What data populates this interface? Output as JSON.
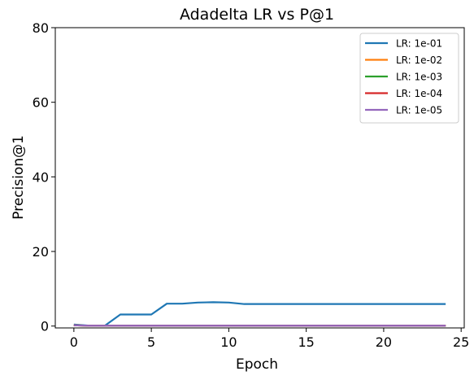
{
  "chart_data": {
    "type": "line",
    "title": "Adadelta LR vs P@1",
    "xlabel": "Epoch",
    "ylabel": "Precision@1",
    "xlim": [
      -1.2,
      25.2
    ],
    "ylim": [
      -0.5,
      80
    ],
    "xticks": [
      0,
      5,
      10,
      15,
      20,
      25
    ],
    "yticks": [
      0,
      20,
      40,
      60,
      80
    ],
    "grid": false,
    "legend_position": "top-right",
    "x": [
      0,
      1,
      2,
      3,
      4,
      5,
      6,
      7,
      8,
      9,
      10,
      11,
      12,
      13,
      14,
      15,
      16,
      17,
      18,
      19,
      20,
      21,
      22,
      23,
      24
    ],
    "series": [
      {
        "name": "LR: 1e-01",
        "color": "#1f77b4",
        "values": [
          0.4,
          0.1,
          0.1,
          3.1,
          3.1,
          3.1,
          6.0,
          6.0,
          6.3,
          6.4,
          6.3,
          5.9,
          5.9,
          5.9,
          5.9,
          5.9,
          5.9,
          5.9,
          5.9,
          5.9,
          5.9,
          5.9,
          5.9,
          5.9,
          5.9
        ]
      },
      {
        "name": "LR: 1e-02",
        "color": "#ff7f0e",
        "values": [
          0.2,
          0.1,
          0.1,
          0.1,
          0.1,
          0.1,
          0.1,
          0.1,
          0.1,
          0.1,
          0.1,
          0.1,
          0.1,
          0.1,
          0.1,
          0.1,
          0.1,
          0.1,
          0.1,
          0.1,
          0.1,
          0.1,
          0.1,
          0.1,
          0.1
        ]
      },
      {
        "name": "LR: 1e-03",
        "color": "#2ca02c",
        "values": [
          0.2,
          0.1,
          0.1,
          0.1,
          0.1,
          0.1,
          0.1,
          0.1,
          0.1,
          0.1,
          0.1,
          0.1,
          0.1,
          0.1,
          0.1,
          0.1,
          0.1,
          0.1,
          0.1,
          0.1,
          0.1,
          0.1,
          0.1,
          0.1,
          0.1
        ]
      },
      {
        "name": "LR: 1e-04",
        "color": "#d62728",
        "values": [
          0.2,
          0.1,
          0.1,
          0.1,
          0.1,
          0.1,
          0.1,
          0.1,
          0.1,
          0.1,
          0.1,
          0.1,
          0.1,
          0.1,
          0.1,
          0.1,
          0.1,
          0.1,
          0.1,
          0.1,
          0.1,
          0.1,
          0.1,
          0.1,
          0.1
        ]
      },
      {
        "name": "LR: 1e-05",
        "color": "#9467bd",
        "values": [
          0.2,
          0.1,
          0.1,
          0.1,
          0.1,
          0.1,
          0.1,
          0.1,
          0.1,
          0.1,
          0.1,
          0.1,
          0.1,
          0.1,
          0.1,
          0.1,
          0.1,
          0.1,
          0.1,
          0.1,
          0.1,
          0.1,
          0.1,
          0.1,
          0.1
        ]
      }
    ]
  }
}
